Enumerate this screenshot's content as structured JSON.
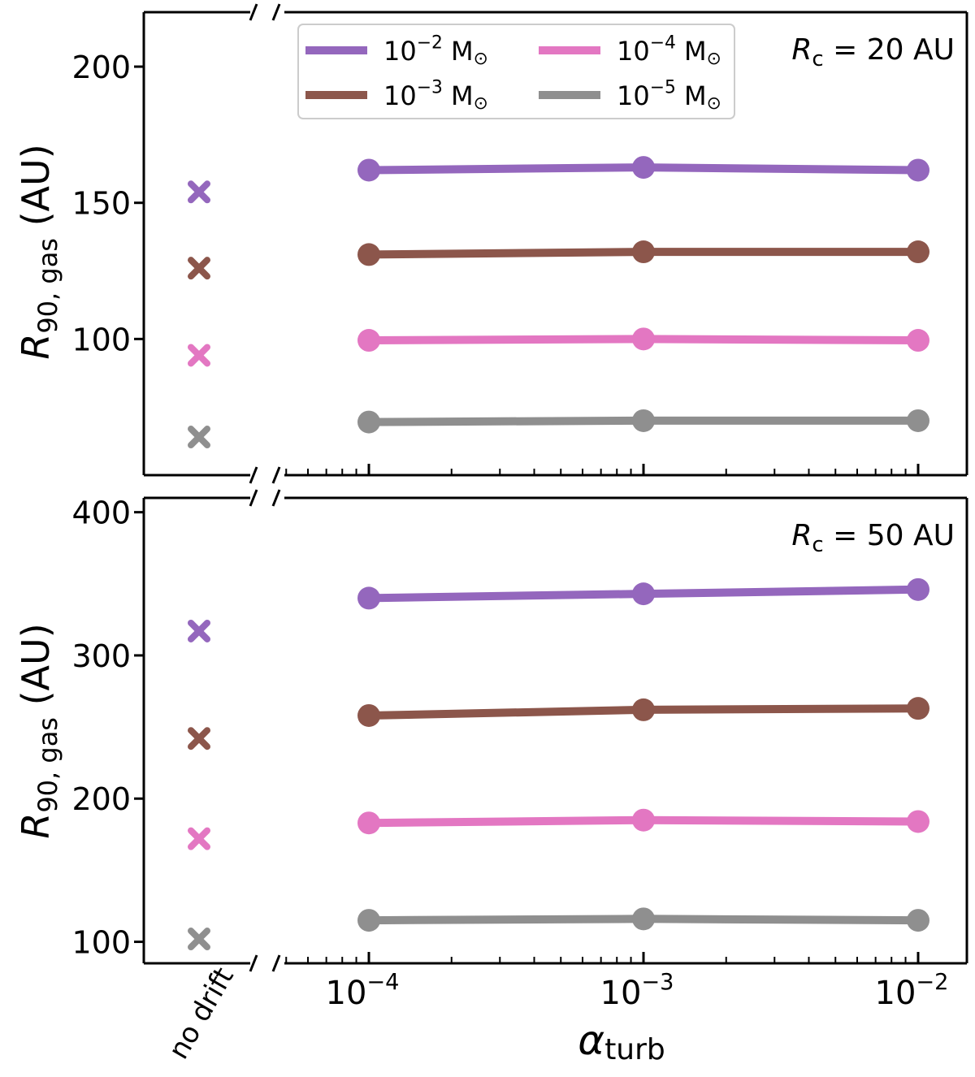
{
  "figure": {
    "xlabel_main": "α",
    "xlabel_sub": "turb",
    "ylabel_main": "R",
    "ylabel_sub": "90, gas",
    "ylabel_unit": " (AU)",
    "no_drift_label": "no drift",
    "x_tick_labels": [
      {
        "base": "10",
        "exp": "−4"
      },
      {
        "base": "10",
        "exp": "−3"
      },
      {
        "base": "10",
        "exp": "−2"
      }
    ],
    "legend": [
      {
        "base": "10",
        "exp": "−2",
        "unit": " M",
        "sym": "⊙",
        "color": "#9467bd"
      },
      {
        "base": "10",
        "exp": "−3",
        "unit": " M",
        "sym": "⊙",
        "color": "#8c564b"
      },
      {
        "base": "10",
        "exp": "−4",
        "unit": " M",
        "sym": "⊙",
        "color": "#e377c2"
      },
      {
        "base": "10",
        "exp": "−5",
        "unit": " M",
        "sym": "⊙",
        "color": "#8f8f8f"
      }
    ]
  },
  "chart_data": [
    {
      "type": "line",
      "annotation": {
        "r": "R",
        "sub": "c",
        "text": " = 20 AU"
      },
      "x": [
        0.0001,
        0.001,
        0.01
      ],
      "xscale": "log",
      "ylim": [
        50,
        220
      ],
      "yticks": [
        100,
        150,
        200
      ],
      "legend_placement": "top-center",
      "series": [
        {
          "name": "10^-2 M⊙",
          "color": "#9467bd",
          "values": [
            162,
            163,
            162
          ],
          "no_drift": 154
        },
        {
          "name": "10^-3 M⊙",
          "color": "#8c564b",
          "values": [
            131,
            132,
            132
          ],
          "no_drift": 126
        },
        {
          "name": "10^-4 M⊙",
          "color": "#e377c2",
          "values": [
            99.5,
            100,
            99.5
          ],
          "no_drift": 94
        },
        {
          "name": "10^-5 M⊙",
          "color": "#8f8f8f",
          "values": [
            69.5,
            70,
            70
          ],
          "no_drift": 64
        }
      ]
    },
    {
      "type": "line",
      "annotation": {
        "r": "R",
        "sub": "c",
        "text": " = 50 AU"
      },
      "x": [
        0.0001,
        0.001,
        0.01
      ],
      "xscale": "log",
      "ylim": [
        85,
        410
      ],
      "yticks": [
        100,
        200,
        300,
        400
      ],
      "series": [
        {
          "name": "10^-2 M⊙",
          "color": "#9467bd",
          "values": [
            340,
            343,
            346
          ],
          "no_drift": 317
        },
        {
          "name": "10^-3 M⊙",
          "color": "#8c564b",
          "values": [
            258,
            262,
            263
          ],
          "no_drift": 242
        },
        {
          "name": "10^-4 M⊙",
          "color": "#e377c2",
          "values": [
            183,
            185,
            184
          ],
          "no_drift": 172
        },
        {
          "name": "10^-5 M⊙",
          "color": "#8f8f8f",
          "values": [
            115,
            116,
            115
          ],
          "no_drift": 102
        }
      ]
    }
  ]
}
